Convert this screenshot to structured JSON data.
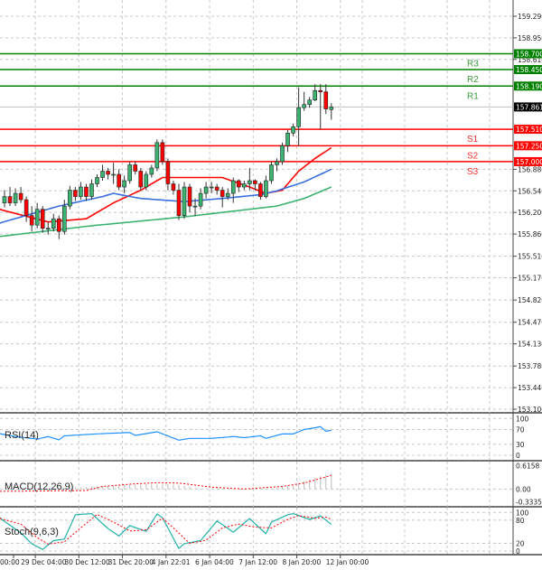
{
  "chart_data": {
    "type": "candlestick",
    "price_axis": {
      "ylim": [
        153.1,
        159.29
      ],
      "ticks": [
        "159.290",
        "158.950",
        "158.610",
        "156.880",
        "156.540",
        "156.200",
        "155.860",
        "155.510",
        "155.170",
        "154.820",
        "154.470",
        "154.130",
        "153.780",
        "153.440",
        "153.100"
      ]
    },
    "time_axis": {
      "ticks": [
        {
          "label": "00:00",
          "index": -1
        },
        {
          "label": "29 Dec 04:00",
          "index": 3
        },
        {
          "label": "30 Dec 12:00",
          "index": 11
        },
        {
          "label": "31 Dec 20:00",
          "index": 19
        },
        {
          "label": "4 Jan 22:01",
          "index": 27
        },
        {
          "label": "6 Jan 04:00",
          "index": 35
        },
        {
          "label": "7 Jan 12:00",
          "index": 43
        },
        {
          "label": "8 Jan 20:00",
          "index": 51
        },
        {
          "label": "12 Jan 00:00",
          "index": 59
        }
      ]
    },
    "candles": [
      [
        156.35,
        156.55,
        156.28,
        156.45
      ],
      [
        156.45,
        156.6,
        156.3,
        156.35
      ],
      [
        156.35,
        156.58,
        156.3,
        156.5
      ],
      [
        156.5,
        156.6,
        156.35,
        156.4
      ],
      [
        156.4,
        156.45,
        156.05,
        156.15
      ],
      [
        156.15,
        156.3,
        155.9,
        156.0
      ],
      [
        156.0,
        156.35,
        155.95,
        156.25
      ],
      [
        156.25,
        156.3,
        155.88,
        155.95
      ],
      [
        155.95,
        156.05,
        155.85,
        155.95
      ],
      [
        155.95,
        156.18,
        155.9,
        156.1
      ],
      [
        156.1,
        156.15,
        155.78,
        155.9
      ],
      [
        155.9,
        156.4,
        155.85,
        156.3
      ],
      [
        156.3,
        156.62,
        156.25,
        156.55
      ],
      [
        156.55,
        156.6,
        156.38,
        156.45
      ],
      [
        156.45,
        156.68,
        156.4,
        156.6
      ],
      [
        156.6,
        156.65,
        156.38,
        156.45
      ],
      [
        156.45,
        156.72,
        156.4,
        156.65
      ],
      [
        156.65,
        156.8,
        156.6,
        156.75
      ],
      [
        156.75,
        156.95,
        156.7,
        156.85
      ],
      [
        156.85,
        156.9,
        156.72,
        156.8
      ],
      [
        156.8,
        156.98,
        156.65,
        156.8
      ],
      [
        156.8,
        156.88,
        156.55,
        156.6
      ],
      [
        156.6,
        156.78,
        156.5,
        156.7
      ],
      [
        156.7,
        157.0,
        156.65,
        156.95
      ],
      [
        156.95,
        157.0,
        156.8,
        156.85
      ],
      [
        156.85,
        156.9,
        156.55,
        156.6
      ],
      [
        156.6,
        156.85,
        156.55,
        156.8
      ],
      [
        156.8,
        156.95,
        156.75,
        156.9
      ],
      [
        156.9,
        157.35,
        156.85,
        157.3
      ],
      [
        157.3,
        157.35,
        156.95,
        157.0
      ],
      [
        157.0,
        157.05,
        156.55,
        156.65
      ],
      [
        156.65,
        156.7,
        156.48,
        156.55
      ],
      [
        156.55,
        156.65,
        156.08,
        156.15
      ],
      [
        156.15,
        156.68,
        156.1,
        156.6
      ],
      [
        156.6,
        156.65,
        156.2,
        156.3
      ],
      [
        156.3,
        156.42,
        156.15,
        156.3
      ],
      [
        156.3,
        156.58,
        156.25,
        156.5
      ],
      [
        156.5,
        156.68,
        156.42,
        156.6
      ],
      [
        156.6,
        156.68,
        156.5,
        156.6
      ],
      [
        156.6,
        156.65,
        156.48,
        156.55
      ],
      [
        156.55,
        156.6,
        156.28,
        156.45
      ],
      [
        156.45,
        156.58,
        156.4,
        156.5
      ],
      [
        156.5,
        156.75,
        156.35,
        156.7
      ],
      [
        156.7,
        156.72,
        156.52,
        156.6
      ],
      [
        156.6,
        156.7,
        156.55,
        156.65
      ],
      [
        156.65,
        156.9,
        156.55,
        156.7
      ],
      [
        156.7,
        156.72,
        156.55,
        156.65
      ],
      [
        156.65,
        156.68,
        156.4,
        156.45
      ],
      [
        156.45,
        156.78,
        156.42,
        156.7
      ],
      [
        156.7,
        157.0,
        156.65,
        156.95
      ],
      [
        156.95,
        157.05,
        156.85,
        157.0
      ],
      [
        157.0,
        157.3,
        156.95,
        157.25
      ],
      [
        157.25,
        157.5,
        157.15,
        157.45
      ],
      [
        157.45,
        157.6,
        157.4,
        157.55
      ],
      [
        157.55,
        158.17,
        157.24,
        157.85
      ],
      [
        157.85,
        158.1,
        157.8,
        157.9
      ],
      [
        157.9,
        158.02,
        157.85,
        157.97
      ],
      [
        157.97,
        158.22,
        157.95,
        158.12
      ],
      [
        158.12,
        158.22,
        157.51,
        158.1
      ],
      [
        158.1,
        158.22,
        157.75,
        157.83
      ],
      [
        157.82,
        157.92,
        157.66,
        157.86
      ]
    ],
    "moving_averages": [
      {
        "color": "#ff0000",
        "knots": [
          [
            -1,
            156.25
          ],
          [
            8,
            156.05
          ],
          [
            15,
            156.1
          ],
          [
            20,
            156.35
          ],
          [
            25,
            156.55
          ],
          [
            29,
            156.75
          ],
          [
            40,
            156.75
          ],
          [
            45,
            156.6
          ],
          [
            48,
            156.5
          ],
          [
            51,
            156.55
          ],
          [
            54,
            156.85
          ],
          [
            57,
            157.05
          ],
          [
            60,
            157.22
          ]
        ]
      },
      {
        "color": "#3a6fe0",
        "knots": [
          [
            -1,
            156.03
          ],
          [
            10,
            156.3
          ],
          [
            18,
            156.45
          ],
          [
            20,
            156.5
          ],
          [
            25,
            156.42
          ],
          [
            33,
            156.37
          ],
          [
            40,
            156.42
          ],
          [
            47,
            156.48
          ],
          [
            50,
            156.54
          ],
          [
            55,
            156.68
          ],
          [
            60,
            156.88
          ]
        ]
      },
      {
        "color": "#3cb371",
        "knots": [
          [
            -1,
            155.82
          ],
          [
            16,
            155.99
          ],
          [
            33,
            156.13
          ],
          [
            50,
            156.3
          ],
          [
            55,
            156.42
          ],
          [
            60,
            156.6
          ]
        ]
      }
    ],
    "levels": [
      {
        "name": "R3",
        "value": 158.7,
        "label": "158.700",
        "color": "#008000"
      },
      {
        "name": "R2",
        "value": 158.45,
        "label": "158.450",
        "color": "#008000"
      },
      {
        "name": "R1",
        "value": 158.19,
        "label": "158.190",
        "color": "#008000"
      },
      {
        "name": "S1",
        "value": 157.51,
        "label": "157.510",
        "color": "#ff0000"
      },
      {
        "name": "S2",
        "value": 157.25,
        "label": "157.250",
        "color": "#ff0000"
      },
      {
        "name": "S3",
        "value": 157.0,
        "label": "157.000",
        "color": "#ff0000"
      }
    ],
    "current_price": {
      "value": 157.861,
      "label": "157.861"
    },
    "indicators": {
      "rsi": {
        "title": "RSI(14)",
        "ylim": [
          0,
          100
        ],
        "ticks": [
          "100",
          "70",
          "30",
          "0"
        ],
        "tick_values": [
          100,
          70,
          30,
          0
        ],
        "color": "#1e90ff",
        "knots": [
          [
            -1,
            59
          ],
          [
            2,
            51
          ],
          [
            6,
            44
          ],
          [
            8,
            51
          ],
          [
            10,
            42
          ],
          [
            11,
            53
          ],
          [
            18,
            59
          ],
          [
            23,
            62
          ],
          [
            24,
            54
          ],
          [
            28,
            64
          ],
          [
            32,
            41
          ],
          [
            34,
            46
          ],
          [
            38,
            46
          ],
          [
            42,
            51
          ],
          [
            44,
            48
          ],
          [
            47,
            53
          ],
          [
            48,
            46
          ],
          [
            51,
            58
          ],
          [
            53,
            58
          ],
          [
            55,
            70
          ],
          [
            57,
            75
          ],
          [
            58,
            78
          ],
          [
            59,
            65
          ],
          [
            60,
            68
          ]
        ]
      },
      "macd": {
        "title": "MACD(12,26,9)",
        "ylim": [
          -0.3335,
          0.6158
        ],
        "ticks": [
          "0.6158",
          "0.00",
          "-0.3335"
        ],
        "tick_values": [
          0.6158,
          0,
          -0.3335
        ],
        "histogram_knots": [
          [
            8,
            0
          ],
          [
            12,
            0.03
          ],
          [
            18,
            0.08
          ],
          [
            24,
            0.12
          ],
          [
            28,
            0.14
          ],
          [
            32,
            0.12
          ],
          [
            35,
            0.02
          ],
          [
            36,
            0
          ],
          [
            48,
            0
          ],
          [
            50,
            0.04
          ],
          [
            53,
            0.1
          ],
          [
            56,
            0.25
          ],
          [
            60,
            0.43
          ]
        ],
        "signal_knots": [
          [
            -1,
            -0.06
          ],
          [
            15,
            -0.04
          ],
          [
            18,
            0.07
          ],
          [
            23,
            0.13
          ],
          [
            28,
            0.17
          ],
          [
            32,
            0.16
          ],
          [
            38,
            0.05
          ],
          [
            44,
            0.0
          ],
          [
            51,
            0.07
          ],
          [
            55,
            0.16
          ],
          [
            60,
            0.36
          ]
        ]
      },
      "stoch": {
        "title": "Stoch(9,6,3)",
        "ylim": [
          0,
          100
        ],
        "ticks": [
          "100",
          "80",
          "20",
          "0"
        ],
        "tick_values": [
          100,
          80,
          20,
          0
        ],
        "main_knots": [
          [
            -1,
            87
          ],
          [
            3,
            47
          ],
          [
            5,
            19
          ],
          [
            7,
            4
          ],
          [
            9,
            27
          ],
          [
            11,
            31
          ],
          [
            13,
            94
          ],
          [
            16,
            97
          ],
          [
            19,
            58
          ],
          [
            21,
            39
          ],
          [
            23,
            66
          ],
          [
            26,
            51
          ],
          [
            28,
            96
          ],
          [
            29,
            86
          ],
          [
            32,
            7
          ],
          [
            33,
            19
          ],
          [
            36,
            27
          ],
          [
            39,
            78
          ],
          [
            42,
            49
          ],
          [
            45,
            84
          ],
          [
            48,
            45
          ],
          [
            49,
            75
          ],
          [
            52,
            94
          ],
          [
            53,
            97
          ],
          [
            56,
            82
          ],
          [
            58,
            91
          ],
          [
            60,
            69
          ]
        ],
        "signal_knots": [
          [
            -1,
            85
          ],
          [
            3,
            70
          ],
          [
            6,
            35
          ],
          [
            8,
            18
          ],
          [
            11,
            24
          ],
          [
            14,
            60
          ],
          [
            17,
            95
          ],
          [
            20,
            75
          ],
          [
            23,
            52
          ],
          [
            26,
            55
          ],
          [
            29,
            85
          ],
          [
            31,
            60
          ],
          [
            34,
            20
          ],
          [
            37,
            28
          ],
          [
            40,
            60
          ],
          [
            43,
            70
          ],
          [
            46,
            62
          ],
          [
            49,
            60
          ],
          [
            52,
            82
          ],
          [
            54,
            92
          ],
          [
            57,
            85
          ],
          [
            59,
            88
          ],
          [
            60,
            82
          ]
        ]
      }
    },
    "grid": true,
    "colors": {
      "bull": "#3cb371",
      "bear": "#ff0000",
      "grid": "#c8c8c8"
    }
  }
}
